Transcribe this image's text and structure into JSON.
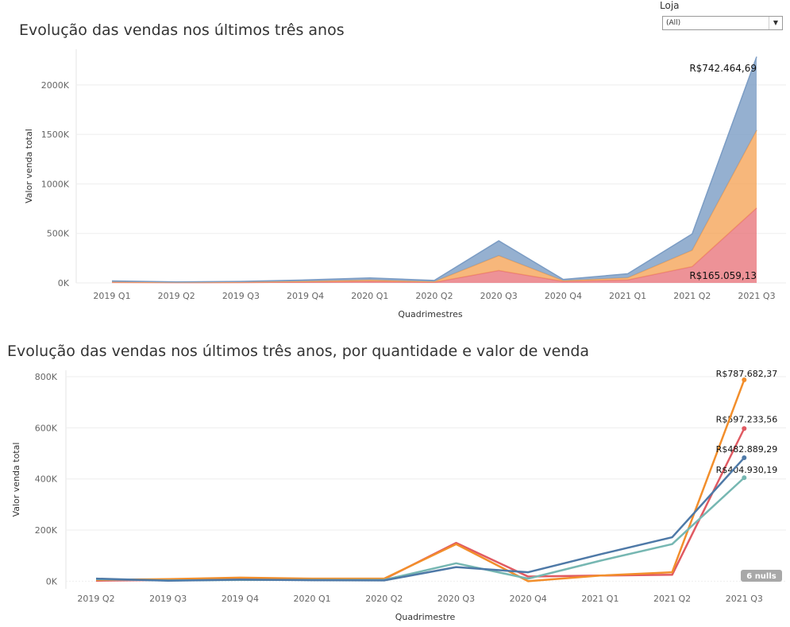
{
  "filter": {
    "label": "Loja",
    "selected": "(All)"
  },
  "chart_data": [
    {
      "type": "area",
      "stacked": true,
      "title": "Evolução das vendas nos últimos três anos",
      "xlabel": "Quadrimestres",
      "ylabel": "Valor venda total",
      "categories": [
        "2019 Q1",
        "2019 Q2",
        "2019 Q3",
        "2019 Q4",
        "2020 Q1",
        "2020 Q2",
        "2020 Q3",
        "2020 Q4",
        "2021 Q1",
        "2021 Q2",
        "2021 Q3"
      ],
      "y_ticks": [
        {
          "v": 0,
          "label": "0K"
        },
        {
          "v": 500000,
          "label": "500K"
        },
        {
          "v": 1000000,
          "label": "1000K"
        },
        {
          "v": 1500000,
          "label": "1500K"
        },
        {
          "v": 2000000,
          "label": "2000K"
        }
      ],
      "ylim": [
        0,
        2360000
      ],
      "grid": true,
      "series": [
        {
          "color": "#e8777d",
          "values": [
            5000,
            3000,
            4000,
            8000,
            16000,
            6000,
            125000,
            15000,
            30000,
            165059.13,
            757000
          ]
        },
        {
          "color": "#f5a55a",
          "values": [
            5000,
            3000,
            5000,
            9000,
            14000,
            7000,
            150000,
            8000,
            22000,
            165000,
            785000
          ]
        },
        {
          "color": "#7b9cc4",
          "values": [
            10000,
            4000,
            6000,
            13000,
            20000,
            12000,
            150000,
            12000,
            40000,
            165000,
            742464.69
          ]
        }
      ],
      "annotations": [
        {
          "text": "R$742.464,69",
          "x": "2021 Q3",
          "y": 2270000,
          "anchor": "top"
        },
        {
          "text": "R$165.059,13",
          "x": "2021 Q3",
          "y": 0,
          "anchor": "bottom"
        }
      ]
    },
    {
      "type": "line",
      "title": "Evolução das vendas nos últimos três anos, por quantidade e valor de venda",
      "xlabel": "Quadrimestre",
      "ylabel": "Valor venda total",
      "categories": [
        "2019 Q2",
        "2019 Q3",
        "2019 Q4",
        "2020 Q1",
        "2020 Q2",
        "2020 Q3",
        "2020 Q4",
        "2021 Q1",
        "2021 Q2",
        "2021 Q3"
      ],
      "y_ticks": [
        {
          "v": 0,
          "label": "0K"
        },
        {
          "v": 200000,
          "label": "200K"
        },
        {
          "v": 400000,
          "label": "400K"
        },
        {
          "v": 600000,
          "label": "600K"
        },
        {
          "v": 800000,
          "label": "800K"
        }
      ],
      "ylim": [
        -30000,
        825000
      ],
      "grid": true,
      "series": [
        {
          "color": "#e05a62",
          "values": [
            2000,
            5000,
            10000,
            8000,
            8000,
            150000,
            18000,
            22000,
            25000,
            597233.56
          ],
          "label": "R$597.233,56"
        },
        {
          "color": "#f28e2b",
          "values": [
            5000,
            8000,
            14000,
            10000,
            10000,
            145000,
            0,
            22000,
            35000,
            787682.37
          ],
          "label": "R$787.682,37"
        },
        {
          "color": "#76b7b2",
          "values": [
            8000,
            3000,
            5000,
            5000,
            5000,
            70000,
            10000,
            80000,
            145000,
            404930.19
          ],
          "label": "R$404.930,19"
        },
        {
          "color": "#4e79a7",
          "values": [
            10000,
            2000,
            6000,
            4000,
            3000,
            55000,
            35000,
            105000,
            172000,
            482889.29
          ],
          "label": "R$482.889,29"
        }
      ],
      "nulls_badge": "6 nulls"
    }
  ]
}
